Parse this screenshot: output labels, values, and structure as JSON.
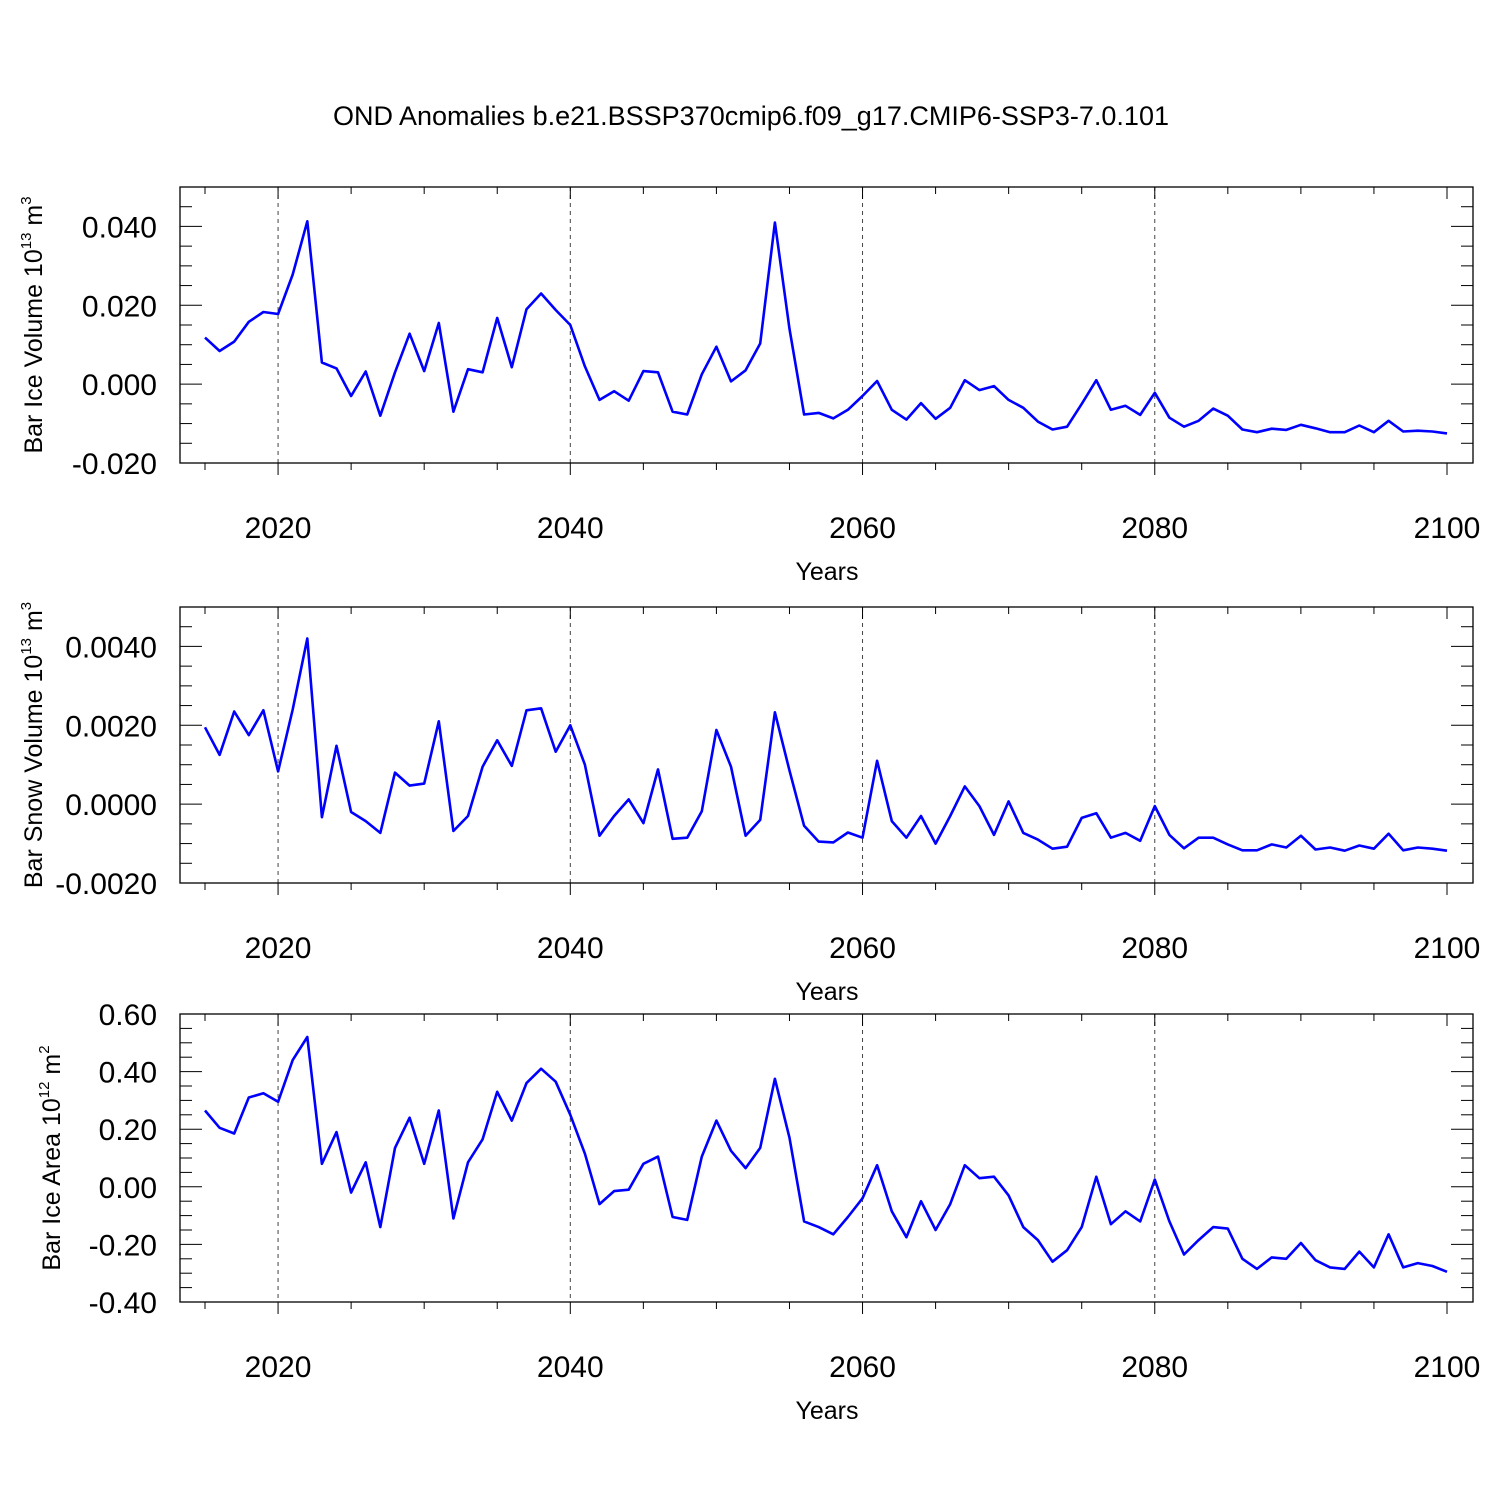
{
  "chart_data": {
    "type": "line",
    "title": "OND Anomalies b.e21.BSSP370cmip6.f09_g17.CMIP6-SSP3-7.0.101",
    "x_start": 2015,
    "xlim": [
      2015,
      2100
    ],
    "x_ticks": [
      2020,
      2040,
      2060,
      2080,
      2100
    ],
    "xlabel": "Years",
    "vertical_grid_at": [
      2020,
      2040,
      2060,
      2080
    ],
    "line_color": "#0000ff",
    "panels": [
      {
        "ylabel_main": "Bar Ice Volume 10",
        "ylabel_exp": "13",
        "ylabel_unit": "m",
        "ylabel_unit_exp": "3",
        "ylim": [
          -0.02,
          0.05
        ],
        "y_ticks": [
          0.04,
          0.02,
          0.0,
          -0.02
        ],
        "y_tick_labels": [
          "0.040",
          "0.020",
          "0.000",
          "-0.020"
        ],
        "values": [
          0.0118,
          0.0084,
          0.0108,
          0.0158,
          0.0183,
          0.0178,
          0.0278,
          0.0413,
          0.0055,
          0.004,
          -0.003,
          0.0032,
          -0.008,
          0.003,
          0.0128,
          0.0033,
          0.0155,
          -0.007,
          0.0038,
          0.003,
          0.0168,
          0.0043,
          0.019,
          0.023,
          0.0188,
          0.015,
          0.0045,
          -0.004,
          -0.0018,
          -0.0042,
          0.0033,
          0.003,
          -0.007,
          -0.0077,
          0.0025,
          0.0095,
          0.0007,
          0.0035,
          0.0103,
          0.041,
          0.014,
          -0.0077,
          -0.0073,
          -0.0087,
          -0.0065,
          -0.003,
          0.0008,
          -0.0065,
          -0.009,
          -0.0048,
          -0.0088,
          -0.006,
          0.001,
          -0.0015,
          -0.0005,
          -0.004,
          -0.006,
          -0.0095,
          -0.0115,
          -0.0108,
          -0.005,
          0.001,
          -0.0065,
          -0.0055,
          -0.0078,
          -0.0022,
          -0.0085,
          -0.0108,
          -0.0093,
          -0.0062,
          -0.008,
          -0.0115,
          -0.0122,
          -0.0113,
          -0.0116,
          -0.0103,
          -0.0112,
          -0.0122,
          -0.0122,
          -0.0105,
          -0.0122,
          -0.0093,
          -0.012,
          -0.0118,
          -0.012,
          -0.0125
        ]
      },
      {
        "ylabel_main": "Bar Snow Volume 10",
        "ylabel_exp": "13",
        "ylabel_unit": "m",
        "ylabel_unit_exp": "3",
        "ylim": [
          -0.002,
          0.005
        ],
        "y_ticks": [
          0.004,
          0.002,
          0.0,
          -0.002
        ],
        "y_tick_labels": [
          "0.0040",
          "0.0020",
          "0.0000",
          "-0.0020"
        ],
        "values": [
          0.00195,
          0.00125,
          0.00235,
          0.00175,
          0.00238,
          0.00083,
          0.0024,
          0.0042,
          -0.00033,
          0.00148,
          -0.0002,
          -0.00043,
          -0.00073,
          0.0008,
          0.00047,
          0.00052,
          0.0021,
          -0.00068,
          -0.0003,
          0.00095,
          0.00162,
          0.00097,
          0.00238,
          0.00243,
          0.00133,
          0.002,
          0.001,
          -0.0008,
          -0.0003,
          0.00012,
          -0.00048,
          0.00088,
          -0.00088,
          -0.00085,
          -0.00018,
          0.00188,
          0.00095,
          -0.0008,
          -0.0004,
          0.00233,
          0.00085,
          -0.00055,
          -0.00095,
          -0.00097,
          -0.00072,
          -0.00085,
          0.0011,
          -0.00043,
          -0.00085,
          -0.0003,
          -0.001,
          -0.0003,
          0.00045,
          -5e-05,
          -0.00078,
          7e-05,
          -0.00073,
          -0.0009,
          -0.00113,
          -0.00108,
          -0.00035,
          -0.00023,
          -0.00085,
          -0.00073,
          -0.00093,
          -5e-05,
          -0.00078,
          -0.00112,
          -0.00085,
          -0.00085,
          -0.00102,
          -0.00117,
          -0.00117,
          -0.00102,
          -0.0011,
          -0.0008,
          -0.00115,
          -0.0011,
          -0.00118,
          -0.00105,
          -0.00113,
          -0.00075,
          -0.00117,
          -0.0011,
          -0.00113,
          -0.00118
        ]
      },
      {
        "ylabel_main": "Bar Ice Area 10",
        "ylabel_exp": "12",
        "ylabel_unit": "m",
        "ylabel_unit_exp": "2",
        "ylim": [
          -0.4,
          0.6
        ],
        "y_ticks": [
          0.6,
          0.4,
          0.2,
          0.0,
          -0.2,
          -0.4
        ],
        "y_tick_labels": [
          "0.60",
          "0.40",
          "0.20",
          "0.00",
          "-0.20",
          "-0.40"
        ],
        "values": [
          0.265,
          0.205,
          0.185,
          0.31,
          0.325,
          0.295,
          0.44,
          0.52,
          0.08,
          0.19,
          -0.02,
          0.085,
          -0.14,
          0.135,
          0.24,
          0.08,
          0.265,
          -0.11,
          0.085,
          0.165,
          0.33,
          0.23,
          0.36,
          0.41,
          0.365,
          0.25,
          0.115,
          -0.06,
          -0.015,
          -0.01,
          0.08,
          0.105,
          -0.105,
          -0.115,
          0.105,
          0.23,
          0.125,
          0.065,
          0.135,
          0.375,
          0.17,
          -0.12,
          -0.14,
          -0.165,
          -0.105,
          -0.04,
          0.075,
          -0.085,
          -0.175,
          -0.05,
          -0.15,
          -0.06,
          0.075,
          0.03,
          0.035,
          -0.03,
          -0.14,
          -0.185,
          -0.26,
          -0.22,
          -0.14,
          0.035,
          -0.13,
          -0.085,
          -0.12,
          0.025,
          -0.12,
          -0.235,
          -0.185,
          -0.14,
          -0.145,
          -0.25,
          -0.285,
          -0.245,
          -0.25,
          -0.195,
          -0.255,
          -0.28,
          -0.285,
          -0.225,
          -0.28,
          -0.165,
          -0.28,
          -0.265,
          -0.275,
          -0.295
        ]
      }
    ]
  }
}
